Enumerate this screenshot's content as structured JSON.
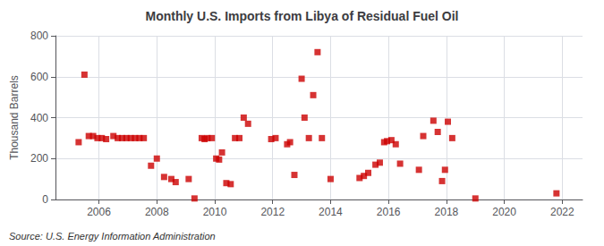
{
  "chart_data": {
    "type": "scatter",
    "title": "Monthly U.S. Imports from Libya of Residual Fuel Oil",
    "ylabel": "Thousand Barrels",
    "annotations": [
      "Source: U.S. Energy Information Administration"
    ],
    "color": "#cc0000",
    "marker": "square",
    "grid": true,
    "xlim": [
      2004.5,
      2022.7
    ],
    "xticks": [
      2006,
      2008,
      2010,
      2012,
      2014,
      2016,
      2018,
      2020,
      2022
    ],
    "ylim": [
      0,
      800
    ],
    "yticks": [
      0,
      200,
      400,
      600,
      800
    ],
    "x": [
      2005.3,
      2005.5,
      2005.65,
      2005.8,
      2005.95,
      2006.1,
      2006.25,
      2006.5,
      2006.65,
      2006.8,
      2006.95,
      2007.1,
      2007.25,
      2007.4,
      2007.55,
      2007.8,
      2008.0,
      2008.25,
      2008.5,
      2008.65,
      2009.1,
      2009.3,
      2009.55,
      2009.65,
      2009.75,
      2009.9,
      2010.05,
      2010.15,
      2010.25,
      2010.4,
      2010.55,
      2010.7,
      2010.85,
      2011.0,
      2011.15,
      2011.95,
      2012.1,
      2012.5,
      2012.6,
      2012.75,
      2013.0,
      2013.1,
      2013.25,
      2013.4,
      2013.55,
      2013.7,
      2014.0,
      2015.0,
      2015.15,
      2015.3,
      2015.55,
      2015.7,
      2015.85,
      2015.95,
      2016.1,
      2016.25,
      2016.4,
      2017.05,
      2017.2,
      2017.55,
      2017.7,
      2017.85,
      2017.95,
      2018.05,
      2018.2,
      2019.0,
      2021.8
    ],
    "values": [
      280,
      610,
      310,
      310,
      300,
      300,
      295,
      310,
      300,
      300,
      300,
      300,
      300,
      300,
      300,
      165,
      200,
      110,
      100,
      85,
      100,
      5,
      300,
      295,
      300,
      300,
      200,
      195,
      230,
      80,
      75,
      300,
      300,
      400,
      370,
      295,
      300,
      270,
      280,
      120,
      590,
      400,
      300,
      510,
      720,
      300,
      100,
      105,
      115,
      130,
      170,
      180,
      280,
      285,
      290,
      270,
      175,
      145,
      310,
      385,
      330,
      90,
      145,
      380,
      300,
      5,
      30
    ]
  }
}
